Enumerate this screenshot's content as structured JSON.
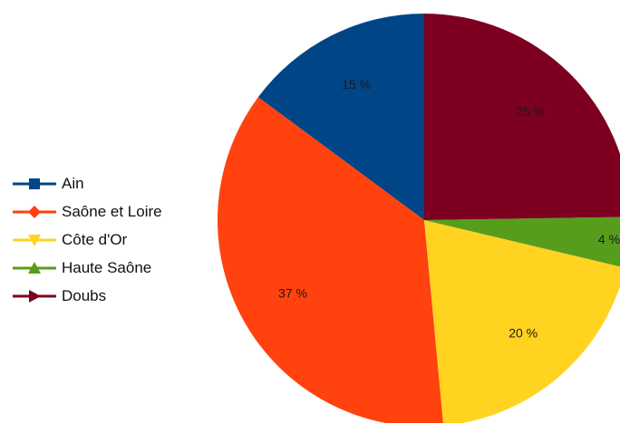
{
  "chart_data": {
    "type": "pie",
    "title": "",
    "legend_position": "left",
    "slices": [
      {
        "name": "Ain",
        "value": 15,
        "label": "15 %",
        "color": "#004586",
        "marker": "square"
      },
      {
        "name": "Saône et Loire",
        "value": 37,
        "label": "37 %",
        "color": "#ff420e",
        "marker": "diamond"
      },
      {
        "name": "Côte d'Or",
        "value": 20,
        "label": "20 %",
        "color": "#ffd320",
        "marker": "triangle-down"
      },
      {
        "name": "Haute Saône",
        "value": 4,
        "label": "4 %",
        "color": "#579d1c",
        "marker": "triangle-up"
      },
      {
        "name": "Doubs",
        "value": 25,
        "label": "25 %",
        "color": "#7e0021",
        "marker": "triangle-right"
      }
    ]
  }
}
